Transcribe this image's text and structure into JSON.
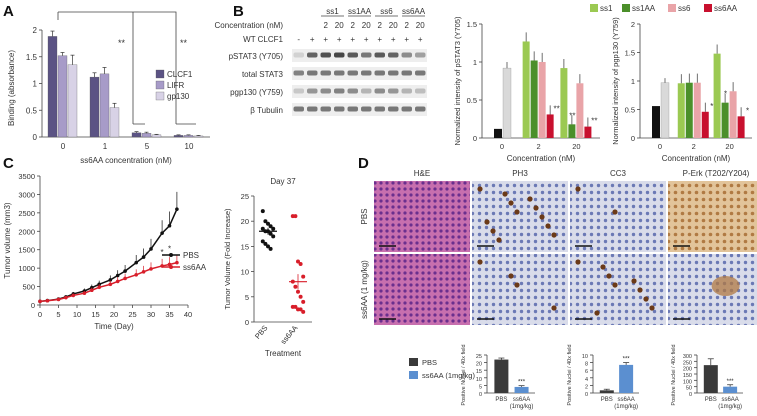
{
  "panels": {
    "a": "A",
    "b": "B",
    "c": "C",
    "d": "D"
  },
  "colors": {
    "clcf1": "#5b5384",
    "lifr": "#a79bc8",
    "gp130": "#d8d2e6",
    "ss1": "#9bc952",
    "ss1aa": "#4b8f2a",
    "ss6": "#e9a4a8",
    "ss6aa": "#c8102e",
    "pbs": "#111111",
    "sixaa": "#d81e2a",
    "bar_pbs": "#3a3a3a",
    "bar_aa": "#5b8fd0",
    "zero": "#111111",
    "wt": "#d9d9d9"
  },
  "panel_a": {
    "chart_data": {
      "type": "bar",
      "categories": [
        "0",
        "1",
        "5",
        "10"
      ],
      "series": [
        {
          "name": "CLCF1",
          "values": [
            1.88,
            1.12,
            0.08,
            0.03
          ],
          "err": [
            0.1,
            0.08,
            0.02,
            0.01
          ]
        },
        {
          "name": "LIFR",
          "values": [
            1.52,
            1.18,
            0.07,
            0.03
          ],
          "err": [
            0.06,
            0.12,
            0.02,
            0.01
          ]
        },
        {
          "name": "gp130",
          "values": [
            1.35,
            0.55,
            0.04,
            0.02
          ],
          "err": [
            0.18,
            0.08,
            0.01,
            0.01
          ]
        }
      ],
      "xlabel": "ss6AA concentration (nM)",
      "ylabel": "Binding (absorbance)",
      "ylim": [
        0,
        2
      ],
      "yticks": [
        "0",
        "0.5",
        "1",
        "1.5",
        "2"
      ],
      "sig": [
        "**",
        "**"
      ]
    }
  },
  "panel_b": {
    "blot": {
      "conc_label": "Concentration (nM)",
      "wt_label": "WT CLCF1",
      "groups": [
        "ss1",
        "ss1AA",
        "ss6",
        "ss6AA"
      ],
      "conc": [
        "2",
        "20",
        "2",
        "20",
        "2",
        "20",
        "2",
        "20"
      ],
      "wt": [
        "-",
        "+",
        "+",
        "+",
        "+",
        "+",
        "+",
        "+",
        "+",
        "+"
      ],
      "rows": [
        "pSTAT3 (Y705)",
        "total STAT3",
        "pgp130 (Y759)",
        "β Tubulin"
      ]
    },
    "legend": [
      "ss1",
      "ss1AA",
      "ss6",
      "ss6AA"
    ],
    "chart1": {
      "type": "bar",
      "ylabel": "Normalized intensity of pSTAT3 (Y705)",
      "xlabel": "Concentration (nM)",
      "categories": [
        "0",
        "2",
        "20"
      ],
      "ylim": [
        0,
        1.5
      ],
      "yticks": [
        "0",
        "0.5",
        "1",
        "1.5"
      ],
      "control": [
        0.12,
        0.92
      ],
      "series": [
        {
          "name": "ss1",
          "values": [
            1.27,
            0.92
          ]
        },
        {
          "name": "ss1AA",
          "values": [
            1.02,
            0.18
          ]
        },
        {
          "name": "ss6",
          "values": [
            1.0,
            0.72
          ]
        },
        {
          "name": "ss6AA",
          "values": [
            0.31,
            0.15
          ]
        }
      ],
      "sig": [
        "**",
        "**",
        "**"
      ]
    },
    "chart2": {
      "type": "bar",
      "ylabel": "Normalized intensity of pgp130 (Y759)",
      "xlabel": "Concentration (nM)",
      "categories": [
        "0",
        "2",
        "20"
      ],
      "ylim": [
        0,
        2
      ],
      "yticks": [
        "0",
        "0.5",
        "1",
        "1.5",
        "2"
      ],
      "control": [
        0.56,
        0.97
      ],
      "series": [
        {
          "name": "ss1",
          "values": [
            0.96,
            1.48
          ]
        },
        {
          "name": "ss1AA",
          "values": [
            0.97,
            0.62
          ]
        },
        {
          "name": "ss6",
          "values": [
            0.97,
            0.82
          ]
        },
        {
          "name": "ss6AA",
          "values": [
            0.46,
            0.38
          ]
        }
      ],
      "sig": [
        "*",
        "*",
        "*"
      ]
    }
  },
  "panel_c": {
    "line": {
      "chart_data": {
        "type": "line",
        "x": [
          0,
          2,
          5,
          7,
          9,
          12,
          14,
          16,
          19,
          21,
          23,
          26,
          28,
          30,
          33,
          35,
          37
        ],
        "series": [
          {
            "name": "PBS",
            "values": [
              100,
              120,
              160,
              220,
              300,
              380,
              470,
              560,
              680,
              800,
              920,
              1150,
              1300,
              1520,
              1950,
              2150,
              2600
            ]
          },
          {
            "name": "ss6AA",
            "values": [
              100,
              115,
              150,
              200,
              260,
              320,
              400,
              480,
              560,
              640,
              720,
              820,
              900,
              980,
              1060,
              1100,
              1150
            ]
          }
        ],
        "xlabel": "Time (Day)",
        "ylabel": "Tumor volume (mm3)",
        "xlim": [
          0,
          40
        ],
        "ylim": [
          0,
          3500
        ],
        "xticks": [
          "0",
          "5",
          "10",
          "15",
          "20",
          "25",
          "30",
          "35",
          "40"
        ],
        "yticks": [
          "0",
          "500",
          "1000",
          "1500",
          "2000",
          "2500",
          "3000",
          "3500"
        ],
        "sig": [
          "*",
          "*"
        ]
      }
    },
    "scatter": {
      "chart_data": {
        "type": "scatter",
        "title": "Day 37",
        "categories": [
          "PBS",
          "ss6AA"
        ],
        "ylabel": "Tumor Volume (Fold Increase)",
        "xlabel": "Treatment",
        "ylim": [
          0,
          25
        ],
        "yticks": [
          "0",
          "5",
          "10",
          "15",
          "20",
          "25"
        ],
        "pbs": [
          22,
          20,
          19.5,
          19,
          18.5,
          18.5,
          18,
          18,
          17.5,
          17,
          16,
          15.5,
          15,
          14.5
        ],
        "ss6aa": [
          21,
          21,
          12,
          11.5,
          9,
          8,
          7,
          6,
          5,
          4,
          3,
          3,
          2.5,
          2.5,
          2
        ],
        "means": [
          18,
          8
        ],
        "sem": [
          0.7,
          1.5
        ]
      }
    }
  },
  "panel_d": {
    "cols": [
      "H&E",
      "PH3",
      "CC3",
      "P-Erk (T202/Y204)"
    ],
    "rows": [
      "PBS",
      "ss6AA (1 mg/kg)"
    ],
    "legend": [
      "PBS",
      "ss6AA (1mg/kg)"
    ],
    "bars": [
      {
        "ylabel": "Positive Nuclei / 40x field",
        "ylim": [
          0,
          25
        ],
        "yticks": [
          "0",
          "5",
          "10",
          "15",
          "20",
          "25"
        ],
        "categories": [
          "PBS",
          "ss6AA (1mg/kg)"
        ],
        "values": [
          22,
          4
        ],
        "err": [
          1,
          0.8
        ],
        "sig": "***"
      },
      {
        "ylabel": "Positive Nuclei / 40x field",
        "ylim": [
          0,
          10
        ],
        "yticks": [
          "0",
          "2",
          "4",
          "6",
          "8",
          "10"
        ],
        "categories": [
          "PBS",
          "ss6AA (1mg/kg)"
        ],
        "values": [
          0.7,
          7.4
        ],
        "err": [
          0.3,
          0.6
        ],
        "sig": "***"
      },
      {
        "ylabel": "Positive Nuclei / 40x field",
        "ylim": [
          0,
          300
        ],
        "yticks": [
          "0",
          "50",
          "100",
          "150",
          "200",
          "250",
          "300"
        ],
        "categories": [
          "PBS",
          "ss6AA (1mg/kg)"
        ],
        "values": [
          220,
          50
        ],
        "err": [
          50,
          15
        ],
        "sig": "***"
      }
    ]
  }
}
